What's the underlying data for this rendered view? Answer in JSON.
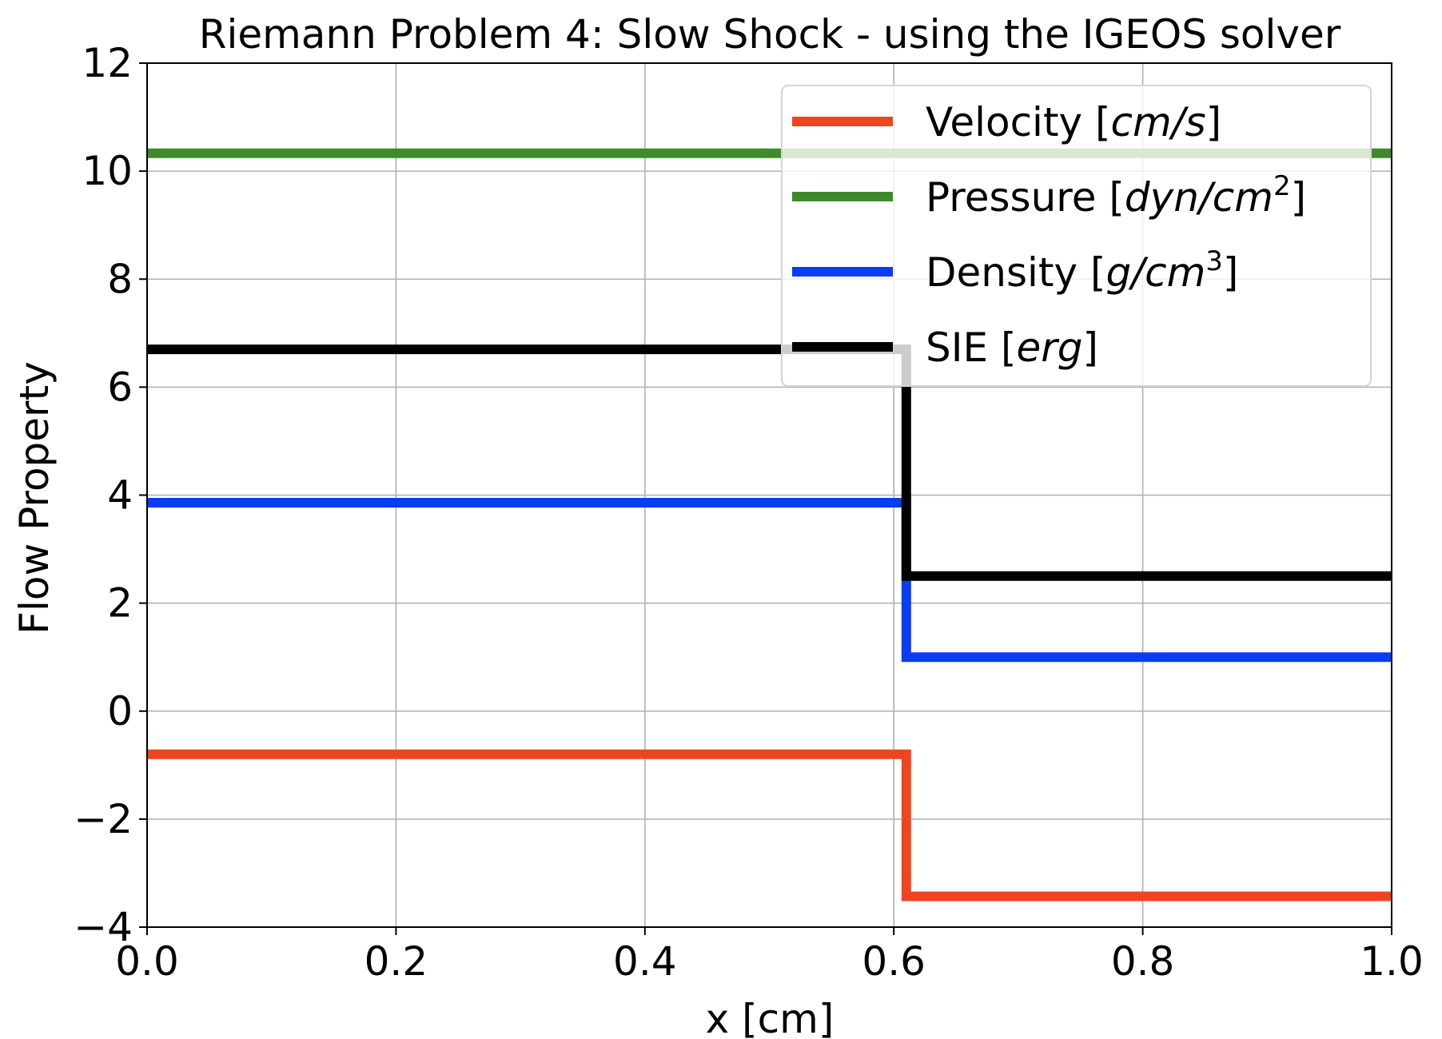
{
  "chart_data": {
    "type": "line",
    "title": "Riemann Problem 4: Slow Shock - using the IGEOS solver",
    "xlabel": "x [cm]",
    "ylabel": "Flow Property",
    "xlim": [
      0.0,
      1.0
    ],
    "ylim": [
      -4,
      12
    ],
    "x_ticks": [
      0.0,
      0.2,
      0.4,
      0.6,
      0.8,
      1.0
    ],
    "x_tick_labels": [
      "0.0",
      "0.2",
      "0.4",
      "0.6",
      "0.8",
      "1.0"
    ],
    "y_ticks": [
      -4,
      -2,
      0,
      2,
      4,
      6,
      8,
      10,
      12
    ],
    "y_tick_labels": [
      "−4",
      "−2",
      "0",
      "2",
      "4",
      "6",
      "8",
      "10",
      "12"
    ],
    "grid": true,
    "legend_position": "top-right",
    "series": [
      {
        "name": "Velocity [cm/s]",
        "legend": {
          "main": "Velocity [",
          "italic": "cm/s",
          "sup": "",
          "close": "]"
        },
        "color": "#ee4422",
        "x": [
          0.0,
          0.61,
          0.61,
          1.0
        ],
        "y": [
          -0.8,
          -0.8,
          -3.43,
          -3.43
        ]
      },
      {
        "name": "Pressure [dyn/cm2]",
        "legend": {
          "main": "Pressure [",
          "italic": "dyn/cm",
          "sup": "2",
          "close": "]"
        },
        "color": "#3d8b2c",
        "x": [
          0.0,
          0.61,
          0.61,
          1.0
        ],
        "y": [
          10.33,
          10.33,
          10.33,
          10.33
        ]
      },
      {
        "name": "Density [g/cm3]",
        "legend": {
          "main": "Density [",
          "italic": "g/cm",
          "sup": "3",
          "close": "]"
        },
        "color": "#0a3cf5",
        "x": [
          0.0,
          0.61,
          0.61,
          1.0
        ],
        "y": [
          3.86,
          3.86,
          1.0,
          1.0
        ]
      },
      {
        "name": "SIE [erg]",
        "legend": {
          "main": "SIE [",
          "italic": "erg",
          "sup": "",
          "close": "]"
        },
        "color": "#000000",
        "x": [
          0.0,
          0.61,
          0.61,
          1.0
        ],
        "y": [
          6.7,
          6.7,
          2.5,
          2.5
        ]
      }
    ]
  }
}
